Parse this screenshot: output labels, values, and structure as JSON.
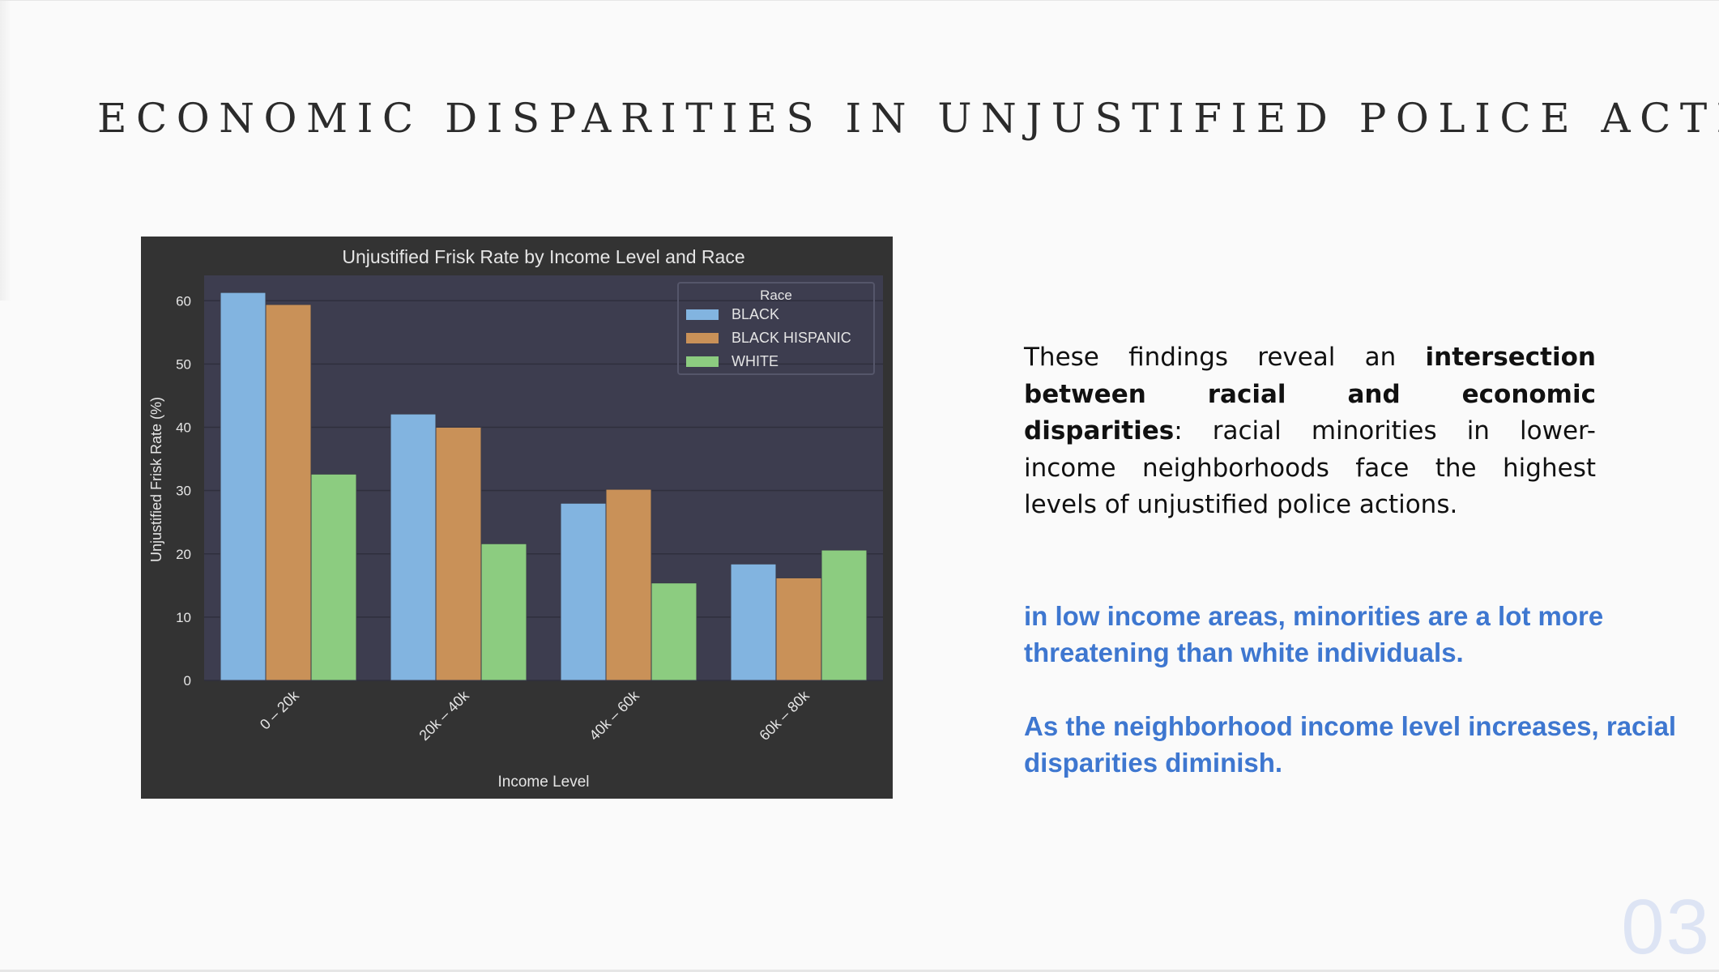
{
  "slide": {
    "title": "ECONOMIC DISPARITIES IN UNJUSTIFIED POLICE ACTIONS",
    "paragraph": {
      "before": "These findings reveal an ",
      "bold": "intersection between racial and economic disparities",
      "after": ": racial minorities in lower-income neighborhoods face the highest levels of unjustified police actions."
    },
    "note_1": "in low income areas, minorities are a lot more threatening than white individuals.",
    "note_2": "As the neighborhood income level increases, racial disparities diminish.",
    "page_number": "03"
  },
  "colors": {
    "chart_background": "#333333",
    "plot_background": "#3d3d4f",
    "gridline": "#2f2f3d",
    "text": "#e5e5e5",
    "accent_text": "#3e77d0"
  },
  "chart_data": {
    "type": "bar",
    "title": "Unjustified Frisk Rate by Income Level and Race",
    "xlabel": "Income Level",
    "ylabel": "Unjustified Frisk Rate (%)",
    "categories": [
      "0 – 20k",
      "20k – 40k",
      "40k – 60k",
      "60k – 80k"
    ],
    "series": [
      {
        "name": "BLACK",
        "color": "#82b4e0",
        "values": [
          61.3,
          42.1,
          28.0,
          18.4
        ]
      },
      {
        "name": "BLACK HISPANIC",
        "color": "#c99158",
        "values": [
          59.4,
          40.0,
          30.2,
          16.2
        ]
      },
      {
        "name": "WHITE",
        "color": "#8ccc80",
        "values": [
          32.6,
          21.6,
          15.4,
          20.6
        ]
      }
    ],
    "ylim": [
      0,
      64
    ],
    "yticks": [
      0,
      10,
      20,
      30,
      40,
      50,
      60
    ],
    "legend": {
      "title": "Race",
      "position": "top-right"
    },
    "grid": true
  }
}
